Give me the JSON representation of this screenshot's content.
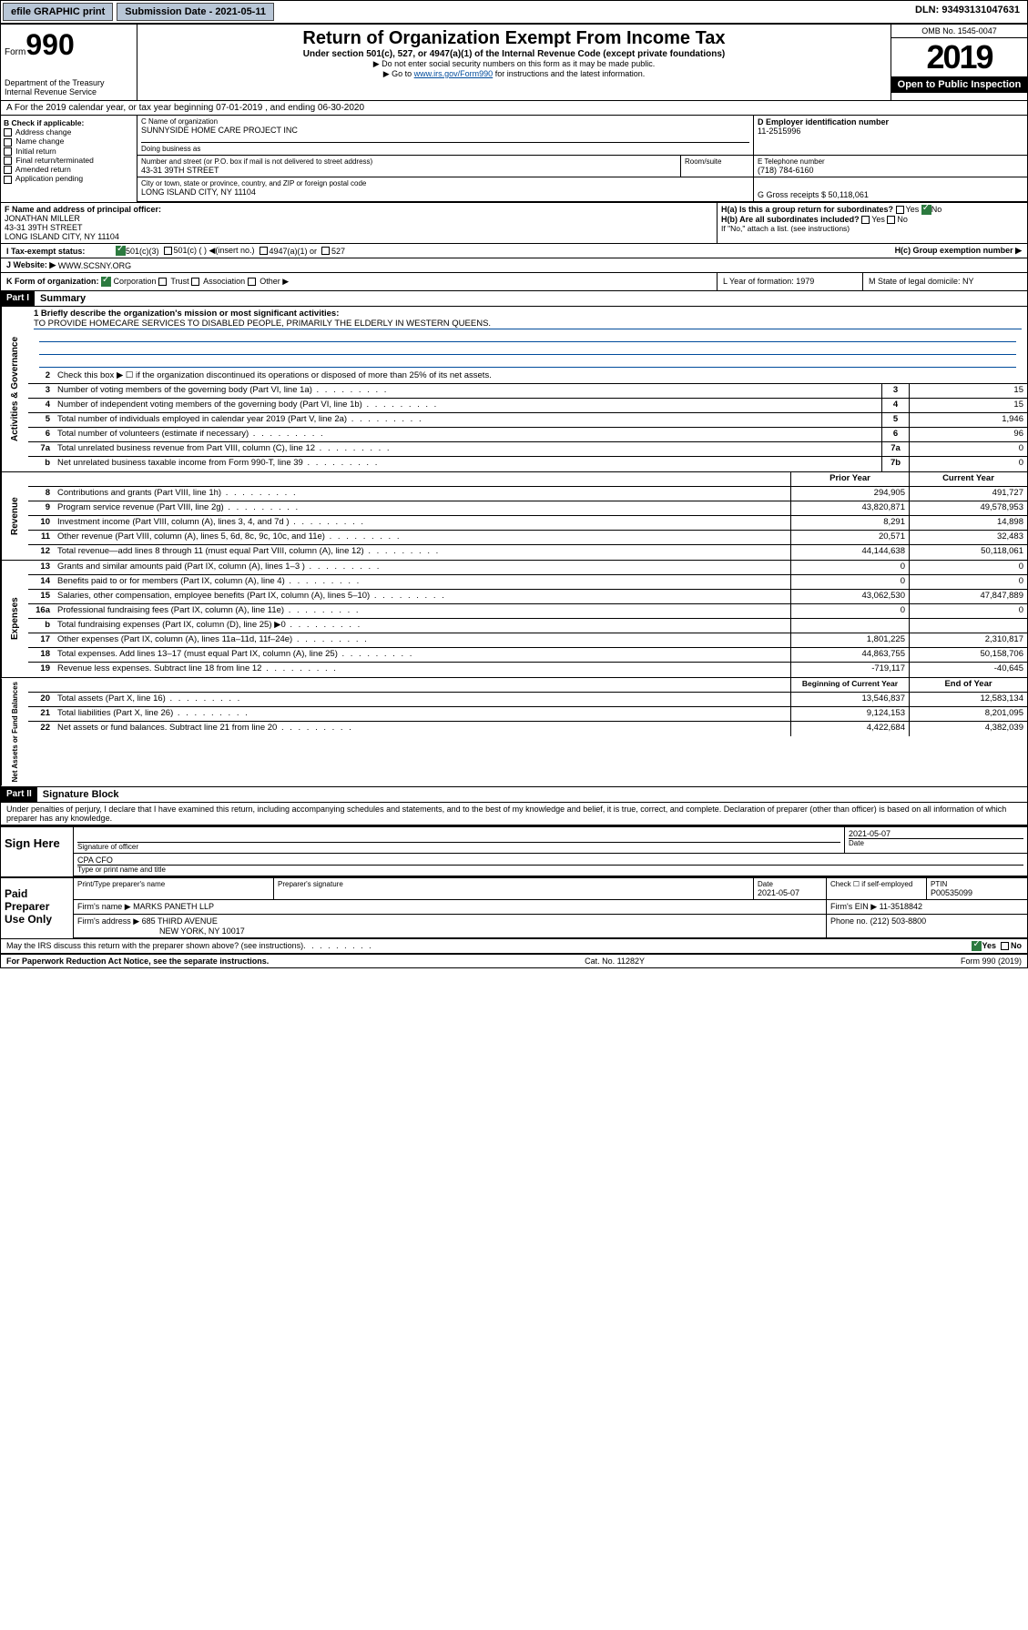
{
  "topbar": {
    "efile": "efile GRAPHIC print",
    "submission_label": "Submission Date - 2021-05-11",
    "dln": "DLN: 93493131047631"
  },
  "header": {
    "form_label": "Form",
    "form_num": "990",
    "title": "Return of Organization Exempt From Income Tax",
    "subtitle": "Under section 501(c), 527, or 4947(a)(1) of the Internal Revenue Code (except private foundations)",
    "note1": "▶ Do not enter social security numbers on this form as it may be made public.",
    "note2_pre": "▶ Go to ",
    "note2_link": "www.irs.gov/Form990",
    "note2_post": " for instructions and the latest information.",
    "omb": "OMB No. 1545-0047",
    "year": "2019",
    "open": "Open to Public Inspection",
    "dept": "Department of the Treasury Internal Revenue Service"
  },
  "sectionA": "A For the 2019 calendar year, or tax year beginning 07-01-2019    , and ending 06-30-2020",
  "colB": {
    "label": "B Check if applicable:",
    "items": [
      "Address change",
      "Name change",
      "Initial return",
      "Final return/terminated",
      "Amended return",
      "Application pending"
    ]
  },
  "org": {
    "name_label": "C Name of organization",
    "name": "SUNNYSIDE HOME CARE PROJECT INC",
    "dba_label": "Doing business as",
    "addr_label": "Number and street (or P.O. box if mail is not delivered to street address)",
    "room_label": "Room/suite",
    "addr": "43-31 39TH STREET",
    "city_label": "City or town, state or province, country, and ZIP or foreign postal code",
    "city": "LONG ISLAND CITY, NY  11104",
    "ein_label": "D Employer identification number",
    "ein": "11-2515996",
    "phone_label": "E Telephone number",
    "phone": "(718) 784-6160",
    "gross_label": "G Gross receipts $ 50,118,061"
  },
  "officer": {
    "label": "F  Name and address of principal officer:",
    "name": "JONATHAN MILLER",
    "addr1": "43-31 39TH STREET",
    "addr2": "LONG ISLAND CITY, NY  11104"
  },
  "groupH": {
    "ha": "H(a)  Is this a group return for subordinates?",
    "hb": "H(b)  Are all subordinates included?",
    "hb_note": "If \"No,\" attach a list. (see instructions)",
    "hc": "H(c)  Group exemption number ▶",
    "yes": "Yes",
    "no": "No"
  },
  "taxStatus": {
    "label": "I   Tax-exempt status:",
    "opts": [
      "501(c)(3)",
      "501(c) (  ) ◀(insert no.)",
      "4947(a)(1) or",
      "527"
    ]
  },
  "website": {
    "label": "J  Website: ▶",
    "value": "WWW.SCSNY.ORG"
  },
  "formOrg": {
    "label": "K Form of organization:",
    "opts": [
      "Corporation",
      "Trust",
      "Association",
      "Other ▶"
    ],
    "year_label": "L Year of formation: 1979",
    "state_label": "M State of legal domicile: NY"
  },
  "part1": {
    "hdr": "Part I",
    "title": "Summary"
  },
  "summary": {
    "q1": "1  Briefly describe the organization's mission or most significant activities:",
    "mission": "TO PROVIDE HOMECARE SERVICES TO DISABLED PEOPLE, PRIMARILY THE ELDERLY IN WESTERN QUEENS.",
    "q2": "Check this box ▶ ☐  if the organization discontinued its operations or disposed of more than 25% of its net assets.",
    "rows_gov": [
      {
        "n": "3",
        "d": "Number of voting members of the governing body (Part VI, line 1a)",
        "b": "3",
        "v": "15"
      },
      {
        "n": "4",
        "d": "Number of independent voting members of the governing body (Part VI, line 1b)",
        "b": "4",
        "v": "15"
      },
      {
        "n": "5",
        "d": "Total number of individuals employed in calendar year 2019 (Part V, line 2a)",
        "b": "5",
        "v": "1,946"
      },
      {
        "n": "6",
        "d": "Total number of volunteers (estimate if necessary)",
        "b": "6",
        "v": "96"
      },
      {
        "n": "7a",
        "d": "Total unrelated business revenue from Part VIII, column (C), line 12",
        "b": "7a",
        "v": "0"
      },
      {
        "n": "b",
        "d": "Net unrelated business taxable income from Form 990-T, line 39",
        "b": "7b",
        "v": "0"
      }
    ],
    "hdr_prior": "Prior Year",
    "hdr_current": "Current Year",
    "rows_rev": [
      {
        "n": "8",
        "d": "Contributions and grants (Part VIII, line 1h)",
        "p": "294,905",
        "c": "491,727"
      },
      {
        "n": "9",
        "d": "Program service revenue (Part VIII, line 2g)",
        "p": "43,820,871",
        "c": "49,578,953"
      },
      {
        "n": "10",
        "d": "Investment income (Part VIII, column (A), lines 3, 4, and 7d )",
        "p": "8,291",
        "c": "14,898"
      },
      {
        "n": "11",
        "d": "Other revenue (Part VIII, column (A), lines 5, 6d, 8c, 9c, 10c, and 11e)",
        "p": "20,571",
        "c": "32,483"
      },
      {
        "n": "12",
        "d": "Total revenue—add lines 8 through 11 (must equal Part VIII, column (A), line 12)",
        "p": "44,144,638",
        "c": "50,118,061"
      }
    ],
    "rows_exp": [
      {
        "n": "13",
        "d": "Grants and similar amounts paid (Part IX, column (A), lines 1–3 )",
        "p": "0",
        "c": "0"
      },
      {
        "n": "14",
        "d": "Benefits paid to or for members (Part IX, column (A), line 4)",
        "p": "0",
        "c": "0"
      },
      {
        "n": "15",
        "d": "Salaries, other compensation, employee benefits (Part IX, column (A), lines 5–10)",
        "p": "43,062,530",
        "c": "47,847,889"
      },
      {
        "n": "16a",
        "d": "Professional fundraising fees (Part IX, column (A), line 11e)",
        "p": "0",
        "c": "0"
      },
      {
        "n": "b",
        "d": "Total fundraising expenses (Part IX, column (D), line 25) ▶0",
        "p": "",
        "c": ""
      },
      {
        "n": "17",
        "d": "Other expenses (Part IX, column (A), lines 11a–11d, 11f–24e)",
        "p": "1,801,225",
        "c": "2,310,817"
      },
      {
        "n": "18",
        "d": "Total expenses. Add lines 13–17 (must equal Part IX, column (A), line 25)",
        "p": "44,863,755",
        "c": "50,158,706"
      },
      {
        "n": "19",
        "d": "Revenue less expenses. Subtract line 18 from line 12",
        "p": "-719,117",
        "c": "-40,645"
      }
    ],
    "hdr_begin": "Beginning of Current Year",
    "hdr_end": "End of Year",
    "rows_net": [
      {
        "n": "20",
        "d": "Total assets (Part X, line 16)",
        "p": "13,546,837",
        "c": "12,583,134"
      },
      {
        "n": "21",
        "d": "Total liabilities (Part X, line 26)",
        "p": "9,124,153",
        "c": "8,201,095"
      },
      {
        "n": "22",
        "d": "Net assets or fund balances. Subtract line 21 from line 20",
        "p": "4,422,684",
        "c": "4,382,039"
      }
    ]
  },
  "sideLabels": {
    "gov": "Activities & Governance",
    "rev": "Revenue",
    "exp": "Expenses",
    "net": "Net Assets or Fund Balances"
  },
  "part2": {
    "hdr": "Part II",
    "title": "Signature Block"
  },
  "perjury": "Under penalties of perjury, I declare that I have examined this return, including accompanying schedules and statements, and to the best of my knowledge and belief, it is true, correct, and complete. Declaration of preparer (other than officer) is based on all information of which preparer has any knowledge.",
  "sign": {
    "here": "Sign Here",
    "sig_officer": "Signature of officer",
    "date1": "2021-05-07",
    "date_label": "Date",
    "name_title": "CPA CFO",
    "type_label": "Type or print name and title"
  },
  "paid": {
    "label": "Paid Preparer Use Only",
    "col1": "Print/Type preparer's name",
    "col2": "Preparer's signature",
    "col3": "Date",
    "date": "2021-05-07",
    "col4": "Check ☐ if self-employed",
    "col5": "PTIN",
    "ptin": "P00535099",
    "firm_name_label": "Firm's name    ▶",
    "firm_name": "MARKS PANETH LLP",
    "firm_ein_label": "Firm's EIN ▶",
    "firm_ein": "11-3518842",
    "firm_addr_label": "Firm's address ▶",
    "firm_addr": "685 THIRD AVENUE",
    "firm_city": "NEW YORK, NY  10017",
    "phone_label": "Phone no.",
    "phone": "(212) 503-8800"
  },
  "discuss": "May the IRS discuss this return with the preparer shown above? (see instructions)",
  "footer": {
    "left": "For Paperwork Reduction Act Notice, see the separate instructions.",
    "mid": "Cat. No. 11282Y",
    "right": "Form 990 (2019)"
  }
}
